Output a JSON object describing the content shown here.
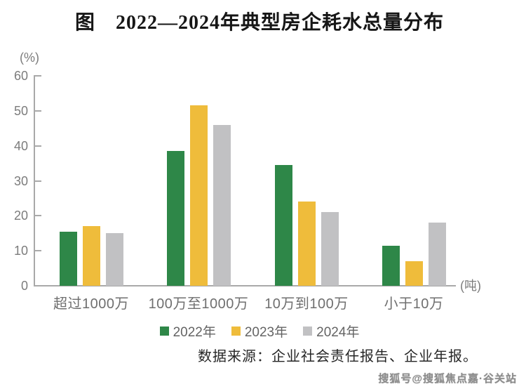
{
  "chart_data": {
    "type": "bar",
    "title": "图　2022—2024年典型房企耗水总量分布",
    "y_unit_label": "(%)",
    "x_unit_label": "(吨)",
    "ylim": [
      0,
      60
    ],
    "ytick_step": 10,
    "grid": false,
    "legend_position": "bottom",
    "categories": [
      "超过1000万",
      "100万至1000万",
      "10万到100万",
      "小于10万"
    ],
    "series": [
      {
        "name": "2022年",
        "color": "#2e8748",
        "values": [
          15.5,
          38.5,
          34.5,
          11.5
        ]
      },
      {
        "name": "2023年",
        "color": "#efbc3b",
        "values": [
          17,
          51.5,
          24,
          7
        ]
      },
      {
        "name": "2024年",
        "color": "#c1c1c3",
        "values": [
          15,
          46,
          21,
          18
        ]
      }
    ]
  },
  "footer": {
    "source": "数据来源：企业社会责任报告、企业年报。"
  },
  "watermark": "搜狐号@搜狐焦点嘉·谷关站",
  "colors": {
    "axis": "#a9a9a9",
    "tick_text": "#7c7c7c",
    "title_text": "#161616"
  }
}
